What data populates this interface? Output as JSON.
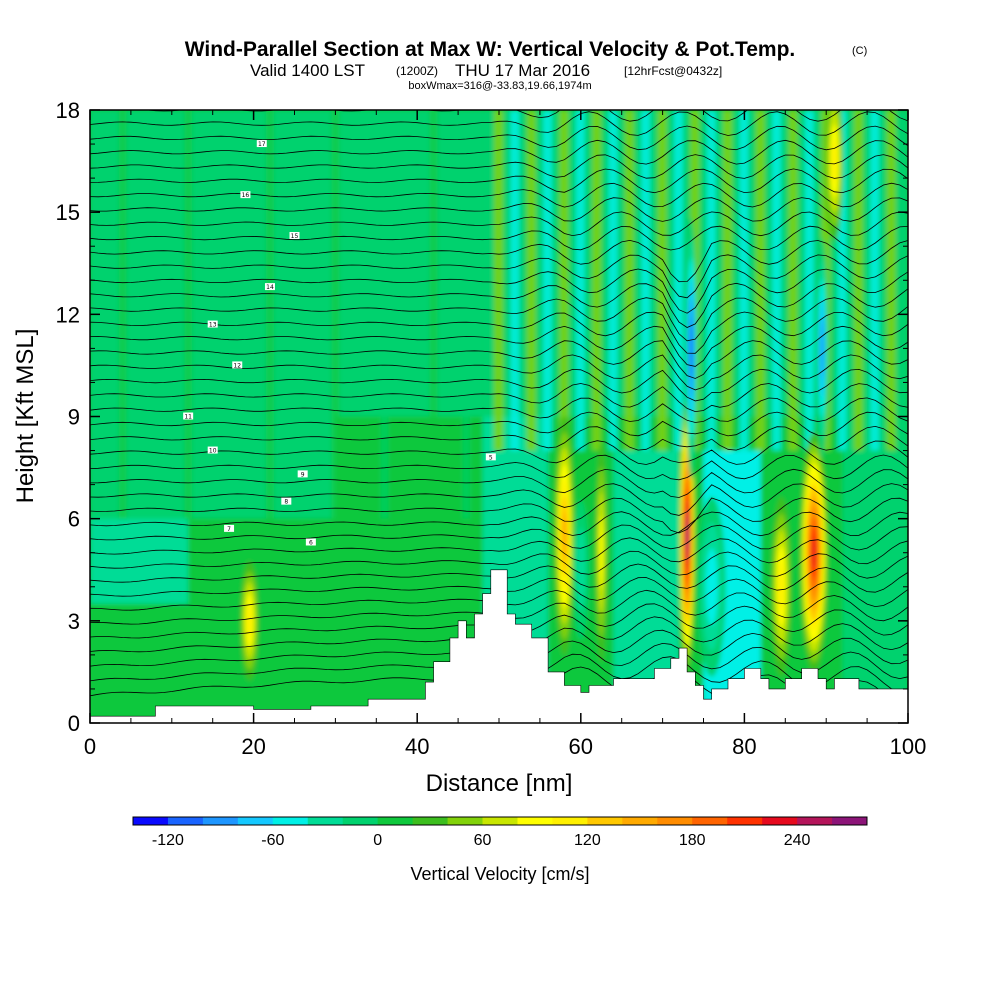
{
  "chart_data": {
    "type": "heatmap",
    "title": "Wind-Parallel Section at Max W: Vertical Velocity & Pot.Temp.",
    "title_mark": "(C)",
    "subtitle_main": "Valid 1400 LST",
    "subtitle_utc": "(1200Z)",
    "subtitle_date": "THU 17 Mar 2016",
    "subtitle_fcst": "[12hrFcst@0432z]",
    "box_info": "boxWmax=316@-33.83,19.66,1974m",
    "xlabel": "Distance [nm]",
    "ylabel": "Height [Kft MSL]",
    "xlim": [
      0,
      100
    ],
    "ylim": [
      0,
      18
    ],
    "x_ticks": [
      "0",
      "20",
      "40",
      "60",
      "80",
      "100"
    ],
    "y_ticks": [
      "0",
      "3",
      "6",
      "9",
      "12",
      "15",
      "18"
    ],
    "colorbar": {
      "label": "Vertical Velocity [cm/s]",
      "tick_labels": [
        "-120",
        "-60",
        "0",
        "60",
        "120",
        "180",
        "240"
      ],
      "tick_values": [
        -120,
        -60,
        0,
        60,
        120,
        180,
        240
      ],
      "range": [
        -140,
        280
      ],
      "colors": [
        "#0a0aff",
        "#1964ff",
        "#1e96ff",
        "#14c8ff",
        "#00f0e6",
        "#00dc96",
        "#00d26e",
        "#0fc83c",
        "#3cbe1e",
        "#82d20a",
        "#c8e600",
        "#ffff00",
        "#fff000",
        "#ffc800",
        "#ffaa00",
        "#ff8c00",
        "#ff6400",
        "#ff3200",
        "#e60a1e",
        "#b4145a",
        "#8c1478"
      ]
    },
    "terrain_nm_kft": [
      [
        0,
        0.2
      ],
      [
        8,
        0.2
      ],
      [
        8,
        0.5
      ],
      [
        20,
        0.5
      ],
      [
        20,
        0.4
      ],
      [
        27,
        0.4
      ],
      [
        27,
        0.5
      ],
      [
        34,
        0.5
      ],
      [
        34,
        0.7
      ],
      [
        41,
        0.7
      ],
      [
        41,
        1.2
      ],
      [
        42,
        1.2
      ],
      [
        42,
        1.8
      ],
      [
        44,
        1.8
      ],
      [
        44,
        2.5
      ],
      [
        45,
        2.5
      ],
      [
        45,
        3.0
      ],
      [
        46,
        3.0
      ],
      [
        46,
        2.5
      ],
      [
        47,
        2.5
      ],
      [
        47,
        3.2
      ],
      [
        48,
        3.2
      ],
      [
        48,
        3.8
      ],
      [
        49,
        3.8
      ],
      [
        49,
        4.5
      ],
      [
        51,
        4.5
      ],
      [
        51,
        3.2
      ],
      [
        52,
        3.2
      ],
      [
        52,
        2.9
      ],
      [
        54,
        2.9
      ],
      [
        54,
        2.5
      ],
      [
        56,
        2.5
      ],
      [
        56,
        1.5
      ],
      [
        58,
        1.5
      ],
      [
        58,
        1.1
      ],
      [
        60,
        1.1
      ],
      [
        60,
        0.9
      ],
      [
        61,
        0.9
      ],
      [
        61,
        1.1
      ],
      [
        64,
        1.1
      ],
      [
        64,
        1.3
      ],
      [
        69,
        1.3
      ],
      [
        69,
        1.6
      ],
      [
        71,
        1.6
      ],
      [
        71,
        1.9
      ],
      [
        72,
        1.9
      ],
      [
        72,
        2.2
      ],
      [
        73,
        2.2
      ],
      [
        73,
        1.5
      ],
      [
        74,
        1.5
      ],
      [
        74,
        1.1
      ],
      [
        75,
        1.1
      ],
      [
        75,
        0.7
      ],
      [
        76,
        0.7
      ],
      [
        76,
        1.0
      ],
      [
        78,
        1.0
      ],
      [
        78,
        1.3
      ],
      [
        80,
        1.3
      ],
      [
        80,
        1.6
      ],
      [
        82,
        1.6
      ],
      [
        82,
        1.3
      ],
      [
        83,
        1.3
      ],
      [
        83,
        1.0
      ],
      [
        85,
        1.0
      ],
      [
        85,
        1.3
      ],
      [
        87,
        1.3
      ],
      [
        87,
        1.6
      ],
      [
        89,
        1.6
      ],
      [
        89,
        1.3
      ],
      [
        90,
        1.3
      ],
      [
        90,
        1.0
      ],
      [
        91,
        1.0
      ],
      [
        91,
        1.3
      ],
      [
        94,
        1.3
      ],
      [
        94,
        1.0
      ],
      [
        100,
        1.0
      ]
    ],
    "updrafts": [
      {
        "x_nm": 19.5,
        "z_kft": 3.0,
        "w_cms": 110
      },
      {
        "x_nm": 58.0,
        "z_kft": 5.5,
        "w_cms": 150
      },
      {
        "x_nm": 62.5,
        "z_kft": 5.0,
        "w_cms": 90
      },
      {
        "x_nm": 73.0,
        "z_kft": 5.5,
        "w_cms": 280
      },
      {
        "x_nm": 84.5,
        "z_kft": 4.0,
        "w_cms": 120
      },
      {
        "x_nm": 88.5,
        "z_kft": 5.0,
        "w_cms": 240
      },
      {
        "x_nm": 91.0,
        "z_kft": 16.5,
        "w_cms": 120
      }
    ],
    "downdrafts": [
      {
        "x_nm": 73.5,
        "z_kft": 11.0,
        "w_cms": -120
      },
      {
        "x_nm": 89.5,
        "z_kft": 11.0,
        "w_cms": -100
      },
      {
        "x_nm": 76.0,
        "z_kft": 4.0,
        "w_cms": -60
      },
      {
        "x_nm": 60.0,
        "z_kft": 4.5,
        "w_cms": -50
      }
    ],
    "isentrope_labels": [
      "17",
      "16",
      "15",
      "14",
      "13",
      "12",
      "11",
      "10",
      "9",
      "8",
      "7",
      "6",
      "5"
    ]
  }
}
